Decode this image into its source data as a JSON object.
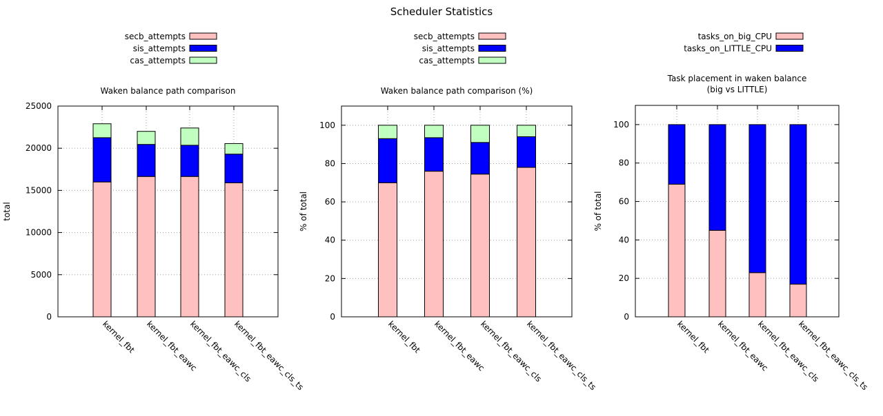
{
  "figure_title": "Scheduler Statistics",
  "colors": {
    "secb": "#ffc0c0",
    "sis": "#0000ff",
    "cas": "#c0ffc0",
    "big": "#ffc0c0",
    "little": "#0000ff",
    "grid": "#a0a0a0"
  },
  "chart_data": [
    {
      "type": "bar",
      "stacked": true,
      "title": "Waken balance path comparison",
      "xlabel": "",
      "ylabel": "total",
      "ylim": [
        0,
        25000
      ],
      "yticks": [
        0,
        5000,
        10000,
        15000,
        20000,
        25000
      ],
      "grid": true,
      "legend_placement": "top",
      "categories": [
        "kernel_fbt",
        "kernel_fbt_eawc",
        "kernel_fbt_eawc_cls",
        "kernel_fbt_eawc_cls_ts"
      ],
      "series": [
        {
          "name": "secb_attempts",
          "color": "#ffc0c0",
          "values": [
            16000,
            16650,
            16650,
            15900
          ]
        },
        {
          "name": "sis_attempts",
          "color": "#0000ff",
          "values": [
            5250,
            3800,
            3700,
            3400
          ]
        },
        {
          "name": "cas_attempts",
          "color": "#c0ffc0",
          "values": [
            1650,
            1550,
            2050,
            1250
          ]
        }
      ]
    },
    {
      "type": "bar",
      "stacked": true,
      "title": "Waken balance path comparison (%)",
      "xlabel": "",
      "ylabel": "% of total",
      "ylim": [
        0,
        110
      ],
      "yticks": [
        0,
        20,
        40,
        60,
        80,
        100
      ],
      "grid": true,
      "legend_placement": "top",
      "categories": [
        "kernel_fbt",
        "kernel_fbt_eawc",
        "kernel_fbt_eawc_cls",
        "kernel_fbt_eawc_cls_ts"
      ],
      "series": [
        {
          "name": "secb_attempts",
          "color": "#ffc0c0",
          "values": [
            70,
            76,
            74.5,
            78
          ]
        },
        {
          "name": "sis_attempts",
          "color": "#0000ff",
          "values": [
            23,
            17.5,
            16.5,
            16
          ]
        },
        {
          "name": "cas_attempts",
          "color": "#c0ffc0",
          "values": [
            7,
            6.5,
            9,
            6
          ]
        }
      ]
    },
    {
      "type": "bar",
      "stacked": true,
      "title": "Task placement in waken balance",
      "subtitle": "(big vs LITTLE)",
      "xlabel": "",
      "ylabel": "% of total",
      "ylim": [
        0,
        110
      ],
      "yticks": [
        0,
        20,
        40,
        60,
        80,
        100
      ],
      "grid": true,
      "legend_placement": "top",
      "categories": [
        "kernel_fbt",
        "kernel_fbt_eawc",
        "kernel_fbt_eawc_cls",
        "kernel_fbt_eawc_cls_ts"
      ],
      "series": [
        {
          "name": "tasks_on_big_CPU",
          "color": "#ffc0c0",
          "values": [
            69,
            45,
            23,
            17
          ]
        },
        {
          "name": "tasks_on_LITTLE_CPU",
          "color": "#0000ff",
          "values": [
            31,
            55,
            77,
            83
          ]
        }
      ]
    }
  ]
}
